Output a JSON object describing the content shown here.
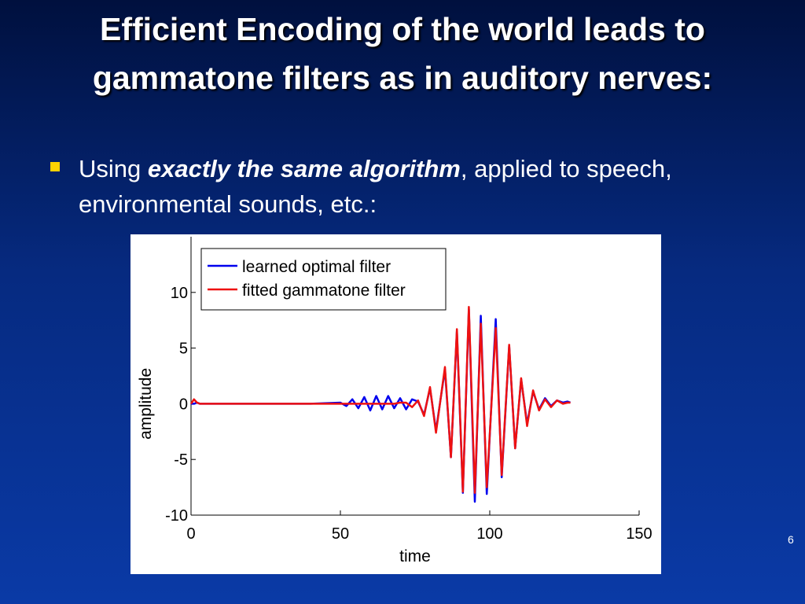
{
  "slide": {
    "title": "Efficient Encoding of the world leads to gammatone filters as in auditory nerves:",
    "bullet": {
      "before": "Using ",
      "emphasis": "exactly the same algorithm",
      "after": ", applied to speech, environmental sounds, etc.:"
    },
    "page_number": 6
  },
  "chart_data": {
    "type": "line",
    "xlabel": "time",
    "ylabel": "amplitude",
    "x": [
      0,
      1,
      2,
      3,
      40,
      50,
      52,
      54,
      56,
      58,
      60,
      62,
      64,
      66,
      68,
      70,
      72,
      74,
      76,
      78,
      80,
      82,
      85,
      87,
      89,
      91,
      93,
      95,
      97,
      99,
      102,
      104,
      106.5,
      108.5,
      110.5,
      112.5,
      114.5,
      116.5,
      118.5,
      120.5,
      122.5,
      124.5,
      126,
      127
    ],
    "series": [
      {
        "name": "learned optimal filter",
        "color": "#0000ee",
        "values": [
          0,
          0,
          0.1,
          0,
          0,
          0.1,
          -0.2,
          0.4,
          -0.4,
          0.6,
          -0.6,
          0.7,
          -0.5,
          0.7,
          -0.4,
          0.5,
          -0.5,
          0.4,
          0.2,
          -1.0,
          1.4,
          -2.4,
          3.1,
          -4.8,
          6.5,
          -8.0,
          8.5,
          -8.8,
          7.9,
          -8.1,
          7.6,
          -6.6,
          5.2,
          -4.0,
          2.2,
          -1.8,
          1.1,
          -0.5,
          0.5,
          -0.2,
          0.3,
          0.1,
          0.2,
          0.1
        ]
      },
      {
        "name": "fitted gammatone filter",
        "color": "#ee1111",
        "values": [
          0,
          0.4,
          0.1,
          0,
          0,
          0,
          0,
          0,
          0,
          0,
          0,
          0,
          0,
          0,
          0,
          0.1,
          0.1,
          -0.3,
          0.3,
          -1.1,
          1.5,
          -2.6,
          3.3,
          -4.8,
          6.7,
          -7.9,
          8.7,
          -8.0,
          7.2,
          -7.5,
          6.8,
          -6.4,
          5.3,
          -4.0,
          2.3,
          -2.0,
          1.2,
          -0.6,
          0.4,
          -0.3,
          0.3,
          0.0,
          0.1,
          0.1
        ]
      }
    ],
    "xlim": [
      0,
      150
    ],
    "xticks": [
      0,
      50,
      100,
      150
    ],
    "ylim": [
      -10,
      15
    ],
    "yticks": [
      -10,
      -5,
      0,
      5,
      10
    ],
    "legend": "upper-left",
    "grid": false
  }
}
